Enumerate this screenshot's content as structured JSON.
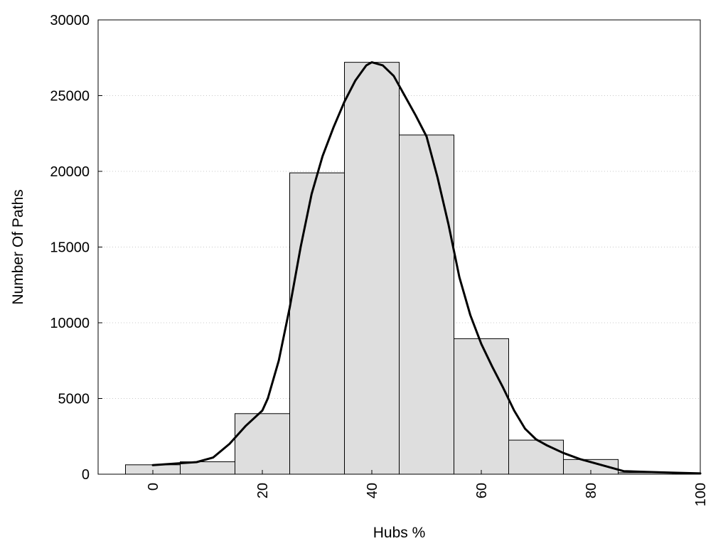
{
  "chart_data": {
    "type": "bar",
    "title": "",
    "xlabel": "Hubs %",
    "ylabel": "Number Of Paths",
    "xlim": [
      -10,
      100
    ],
    "ylim": [
      0,
      30000
    ],
    "bin_width": 10,
    "x_ticks": [
      0,
      20,
      40,
      60,
      80,
      100
    ],
    "y_ticks": [
      0,
      5000,
      10000,
      15000,
      20000,
      25000,
      30000
    ],
    "grid": "horizontal-dotted",
    "bar_color": "#dedede",
    "line_color": "#000000",
    "bins": [
      {
        "center": 0,
        "value": 620
      },
      {
        "center": 10,
        "value": 820
      },
      {
        "center": 20,
        "value": 4000
      },
      {
        "center": 30,
        "value": 19900
      },
      {
        "center": 40,
        "value": 27200
      },
      {
        "center": 50,
        "value": 22400
      },
      {
        "center": 60,
        "value": 8950
      },
      {
        "center": 70,
        "value": 2250
      },
      {
        "center": 80,
        "value": 970
      },
      {
        "center": 90,
        "value": 100
      }
    ],
    "density_curve": {
      "x": [
        0,
        4,
        8,
        11,
        14,
        17,
        20,
        21,
        23,
        25,
        27,
        29,
        31,
        33,
        35,
        37,
        39,
        40,
        42,
        44,
        46,
        48,
        50,
        52,
        54,
        56,
        58,
        60,
        62,
        64,
        66,
        68,
        70,
        72,
        75,
        78,
        82,
        86,
        90,
        95,
        100
      ],
      "y": [
        600,
        700,
        800,
        1100,
        2000,
        3200,
        4200,
        5000,
        7500,
        11000,
        15000,
        18500,
        21000,
        22900,
        24600,
        26000,
        27000,
        27200,
        27000,
        26300,
        25000,
        23700,
        22300,
        19600,
        16500,
        13000,
        10500,
        8600,
        7100,
        5700,
        4200,
        3000,
        2300,
        1900,
        1400,
        1000,
        600,
        200,
        150,
        100,
        50
      ]
    }
  }
}
